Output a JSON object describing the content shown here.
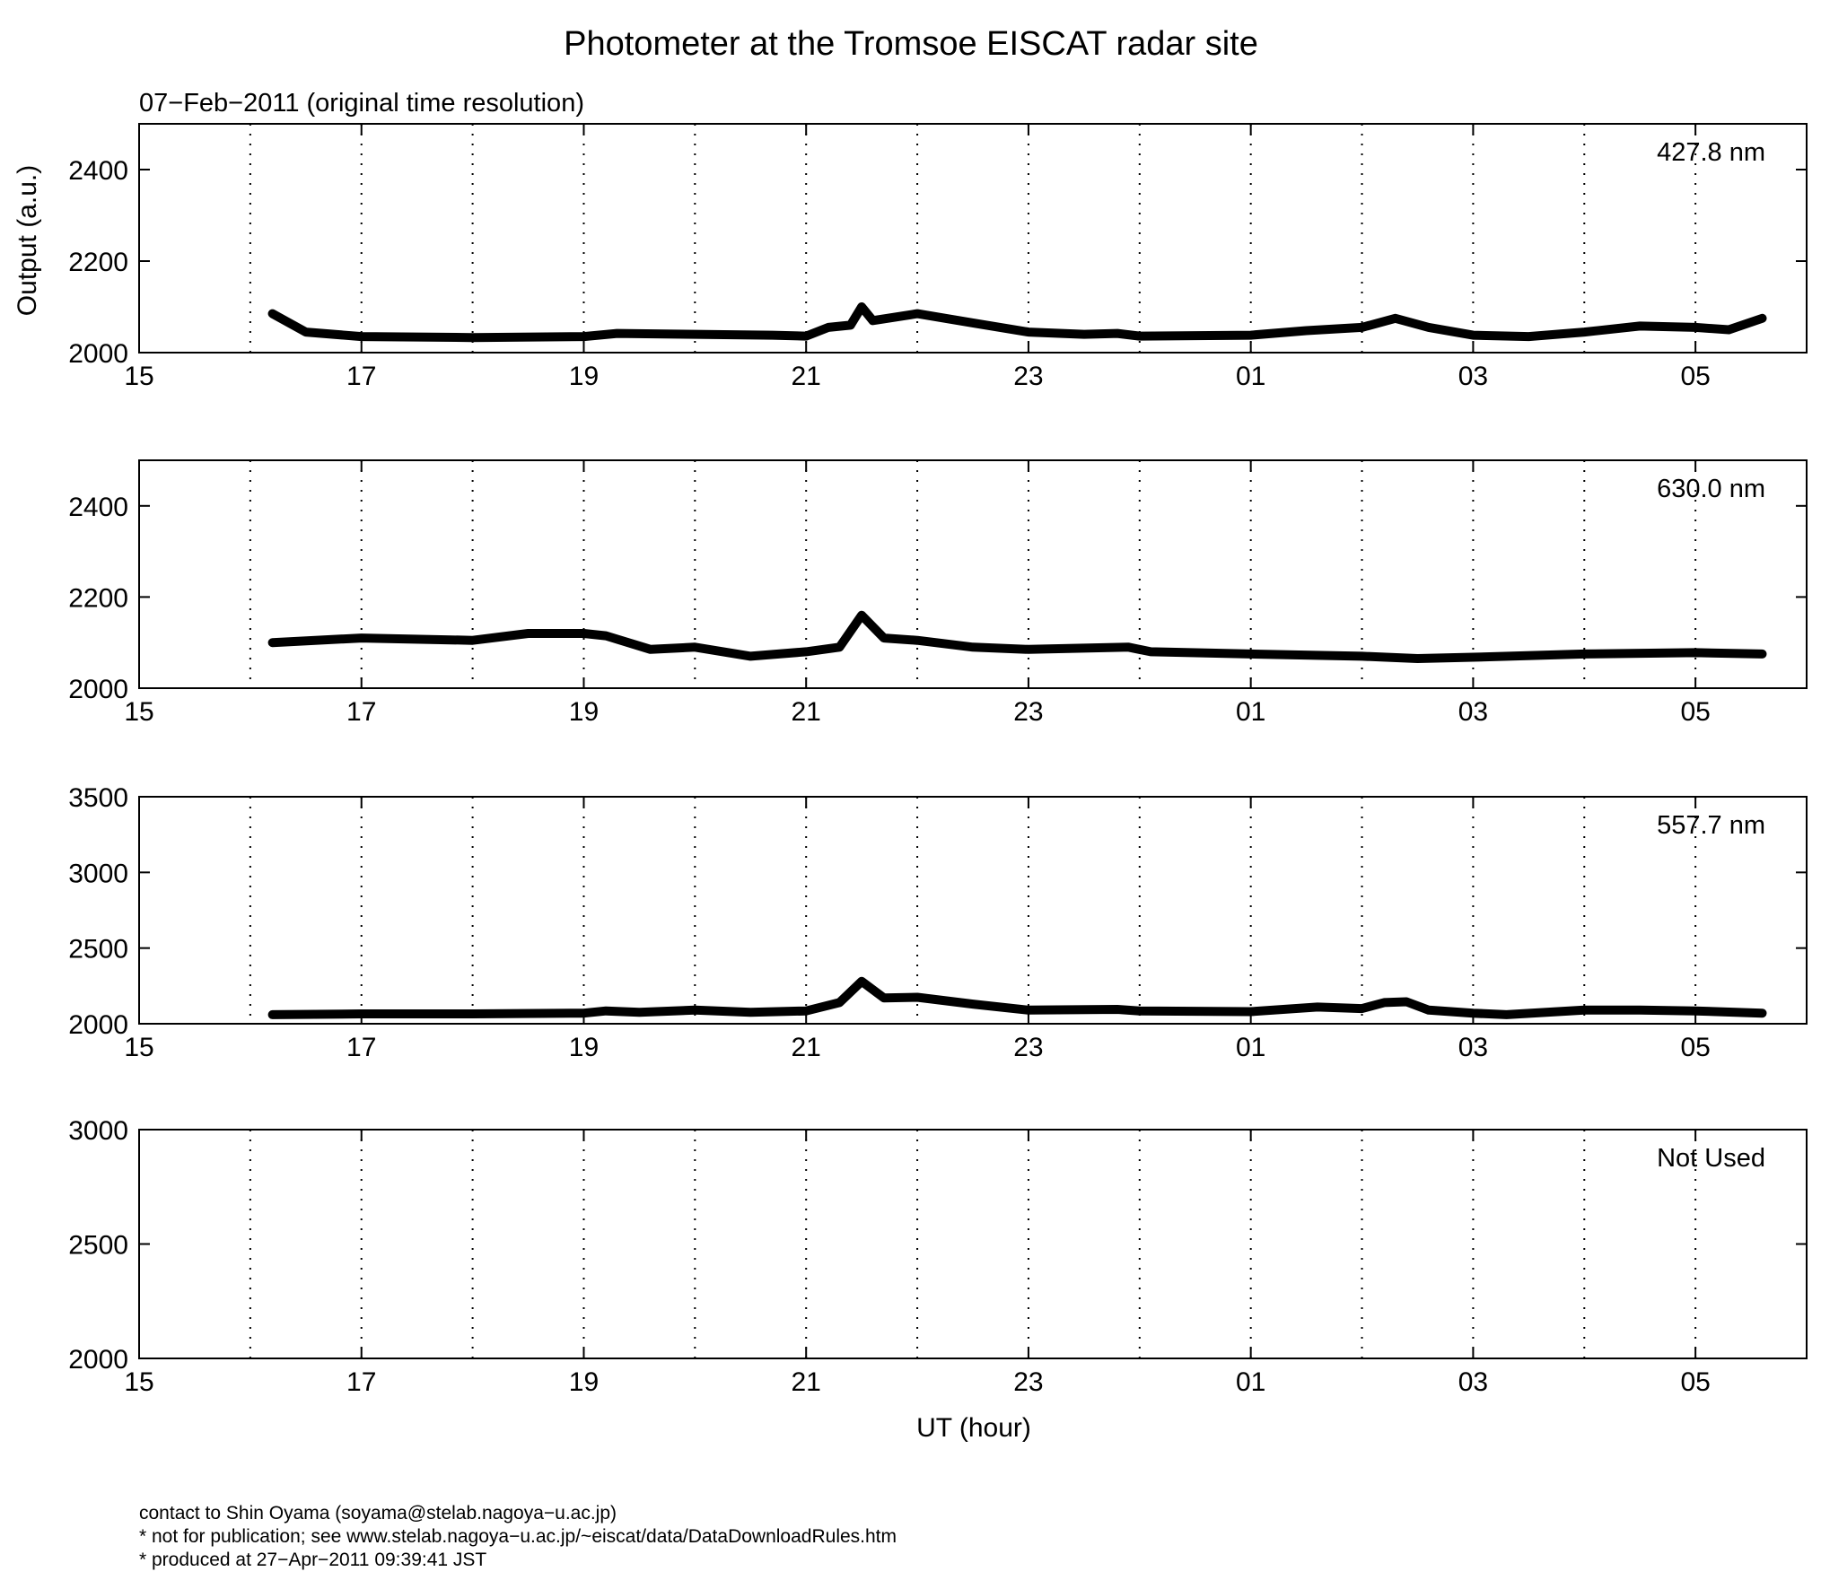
{
  "figure": {
    "title": "Photometer at the Tromsoe EISCAT radar site",
    "subtitle": "07−Feb−2011 (original time resolution)",
    "ylabel": "Output (a.u.)",
    "xlabel": "UT (hour)"
  },
  "footer": {
    "line1": "contact to Shin Oyama (soyama@stelab.nagoya−u.ac.jp)",
    "line2": "* not for publication; see www.stelab.nagoya−u.ac.jp/~eiscat/data/DataDownloadRules.htm",
    "line3": "* produced at 27−Apr−2011 09:39:41 JST"
  },
  "chart_data": [
    {
      "type": "line",
      "panel_label": "427.8 nm",
      "x_unit": "UT hour (15 = 15:00 on 07-Feb, 29 = 05:00 next day)",
      "xlim": [
        15,
        30
      ],
      "x_tick_labels": [
        "15",
        "17",
        "19",
        "21",
        "23",
        "01",
        "03",
        "05"
      ],
      "ylim": [
        2000,
        2500
      ],
      "y_ticks": [
        2000,
        2200,
        2400
      ],
      "x_gridlines": "dotted, hourly",
      "series": [
        {
          "x": [
            16.2,
            16.5,
            17.0,
            18.0,
            19.0,
            19.3,
            20.0,
            20.7,
            21.0,
            21.2,
            21.4,
            21.5,
            21.6,
            22.0,
            22.5,
            23.0,
            23.5,
            23.8,
            24.0,
            25.0,
            25.5,
            26.0,
            26.3,
            26.6,
            27.0,
            27.5,
            28.0,
            28.5,
            29.0,
            29.3,
            29.6
          ],
          "y": [
            2085,
            2045,
            2035,
            2033,
            2035,
            2042,
            2040,
            2038,
            2036,
            2055,
            2060,
            2100,
            2070,
            2085,
            2065,
            2045,
            2040,
            2042,
            2036,
            2038,
            2048,
            2055,
            2075,
            2055,
            2038,
            2035,
            2045,
            2058,
            2055,
            2050,
            2075
          ]
        }
      ]
    },
    {
      "type": "line",
      "panel_label": "630.0 nm",
      "xlim": [
        15,
        30
      ],
      "x_tick_labels": [
        "15",
        "17",
        "19",
        "21",
        "23",
        "01",
        "03",
        "05"
      ],
      "ylim": [
        2000,
        2500
      ],
      "y_ticks": [
        2000,
        2200,
        2400
      ],
      "x_gridlines": "dotted, hourly",
      "series": [
        {
          "x": [
            16.2,
            17.0,
            18.0,
            18.5,
            19.0,
            19.2,
            19.6,
            20.0,
            20.5,
            21.0,
            21.3,
            21.5,
            21.7,
            22.0,
            22.5,
            23.0,
            23.9,
            24.1,
            25.0,
            26.0,
            26.5,
            27.0,
            28.0,
            29.0,
            29.6
          ],
          "y": [
            2100,
            2110,
            2105,
            2120,
            2120,
            2115,
            2085,
            2090,
            2070,
            2080,
            2090,
            2160,
            2110,
            2105,
            2090,
            2085,
            2090,
            2080,
            2075,
            2070,
            2065,
            2068,
            2075,
            2078,
            2075
          ]
        }
      ]
    },
    {
      "type": "line",
      "panel_label": "557.7 nm",
      "xlim": [
        15,
        30
      ],
      "x_tick_labels": [
        "15",
        "17",
        "19",
        "21",
        "23",
        "01",
        "03",
        "05"
      ],
      "ylim": [
        2000,
        3500
      ],
      "y_ticks": [
        2000,
        2500,
        3000,
        3500
      ],
      "x_gridlines": "dotted, hourly",
      "series": [
        {
          "x": [
            16.2,
            17.0,
            18.0,
            19.0,
            19.2,
            19.5,
            20.0,
            20.5,
            21.0,
            21.3,
            21.5,
            21.7,
            22.0,
            22.5,
            23.0,
            23.8,
            24.0,
            25.0,
            25.6,
            26.0,
            26.2,
            26.4,
            26.6,
            27.0,
            27.3,
            28.0,
            28.5,
            29.0,
            29.6
          ],
          "y": [
            2060,
            2065,
            2065,
            2070,
            2085,
            2075,
            2090,
            2075,
            2085,
            2140,
            2280,
            2170,
            2175,
            2130,
            2090,
            2095,
            2085,
            2080,
            2110,
            2100,
            2140,
            2145,
            2090,
            2070,
            2060,
            2090,
            2090,
            2085,
            2070
          ]
        }
      ]
    },
    {
      "type": "line",
      "panel_label": "Not Used",
      "xlim": [
        15,
        30
      ],
      "x_tick_labels": [
        "15",
        "17",
        "19",
        "21",
        "23",
        "01",
        "03",
        "05"
      ],
      "ylim": [
        2000,
        3000
      ],
      "y_ticks": [
        2000,
        2500,
        3000
      ],
      "x_gridlines": "dotted, hourly",
      "series": []
    }
  ]
}
